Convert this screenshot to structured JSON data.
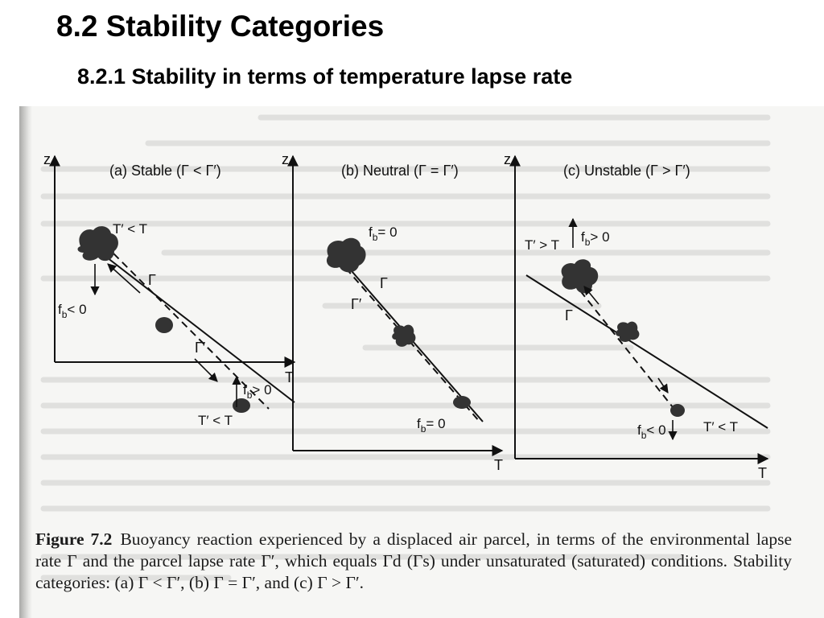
{
  "slide": {
    "title": "8.2   Stability Categories",
    "subtitle": "8.2.1  Stability in terms of temperature lapse rate"
  },
  "figure": {
    "panels": [
      {
        "id": "a",
        "heading": "(a) Stable (Γ < Γ′)",
        "axis_z": "z",
        "axis_t": "T",
        "env_label": "Γ",
        "parcel_label": "Γ′",
        "upper_temp": "T′ < T",
        "upper_force": "f",
        "upper_force_sub": "b",
        "upper_force_rel": "< 0",
        "lower_force": "f",
        "lower_force_sub": "b",
        "lower_force_rel": "> 0",
        "lower_temp": "T′ < T"
      },
      {
        "id": "b",
        "heading": "(b) Neutral (Γ = Γ′)",
        "axis_z": "z",
        "axis_t": "T",
        "env_label": "Γ",
        "parcel_label": "Γ′",
        "upper_force": "f",
        "upper_force_sub": "b",
        "upper_force_rel": "= 0",
        "lower_force": "f",
        "lower_force_sub": "b",
        "lower_force_rel": "= 0"
      },
      {
        "id": "c",
        "heading": "(c) Unstable (Γ > Γ′)",
        "axis_z": "z",
        "axis_t": "T",
        "env_label": "Γ",
        "upper_temp": "T′ > T",
        "upper_force": "f",
        "upper_force_sub": "b",
        "upper_force_rel": "> 0",
        "lower_force": "f",
        "lower_force_sub": "b",
        "lower_force_rel": "< 0",
        "lower_temp": "T′ < T"
      }
    ],
    "caption_label": "Figure 7.2",
    "caption_text": "Buoyancy reaction experienced by a displaced air parcel, in terms of the environmental lapse rate Γ and the parcel lapse rate Γ′, which equals Γd (Γs) under unsaturated (saturated) conditions. Stability categories: (a) Γ < Γ′, (b) Γ = Γ′, and (c) Γ > Γ′."
  },
  "colors": {
    "ink": "#111111",
    "paper": "#f6f6f4",
    "bleed": "#c9c9c7"
  }
}
